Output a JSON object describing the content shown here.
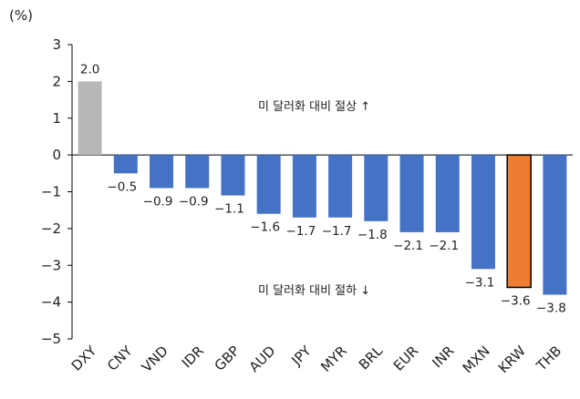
{
  "chart_data": {
    "type": "bar",
    "unit_label": "(%)",
    "categories": [
      "DXY",
      "CNY",
      "VND",
      "IDR",
      "GBP",
      "AUD",
      "JPY",
      "MYR",
      "BRL",
      "EUR",
      "INR",
      "MXN",
      "KRW",
      "THB"
    ],
    "values": [
      2.0,
      -0.5,
      -0.9,
      -0.9,
      -1.1,
      -1.6,
      -1.7,
      -1.7,
      -1.8,
      -2.1,
      -2.1,
      -3.1,
      -3.6,
      -3.8
    ],
    "value_labels": [
      "2.0",
      "-0.5",
      "-0.9",
      "-0.9",
      "-1.1",
      "-1.6",
      "-1.7",
      "-1.7",
      "-1.8",
      "-2.1",
      "-2.1",
      "-3.1",
      "-3.6",
      "-3.8"
    ],
    "ylim": [
      -5,
      3
    ],
    "yticks": [
      "3",
      "2",
      "1",
      "0",
      "-1",
      "-2",
      "-3",
      "-4",
      "-5"
    ],
    "annotations": {
      "upper": "미 달러화 대비 절상 ↑",
      "lower": "미 달러화 대비 절하 ↓"
    },
    "colors": {
      "DXY": "#b7b7b7",
      "KRW": "#ed7d31",
      "default": "#4472c4",
      "negative_label": "#e03c31",
      "positive_label": "#222222"
    },
    "grid": false,
    "legend": "none"
  }
}
